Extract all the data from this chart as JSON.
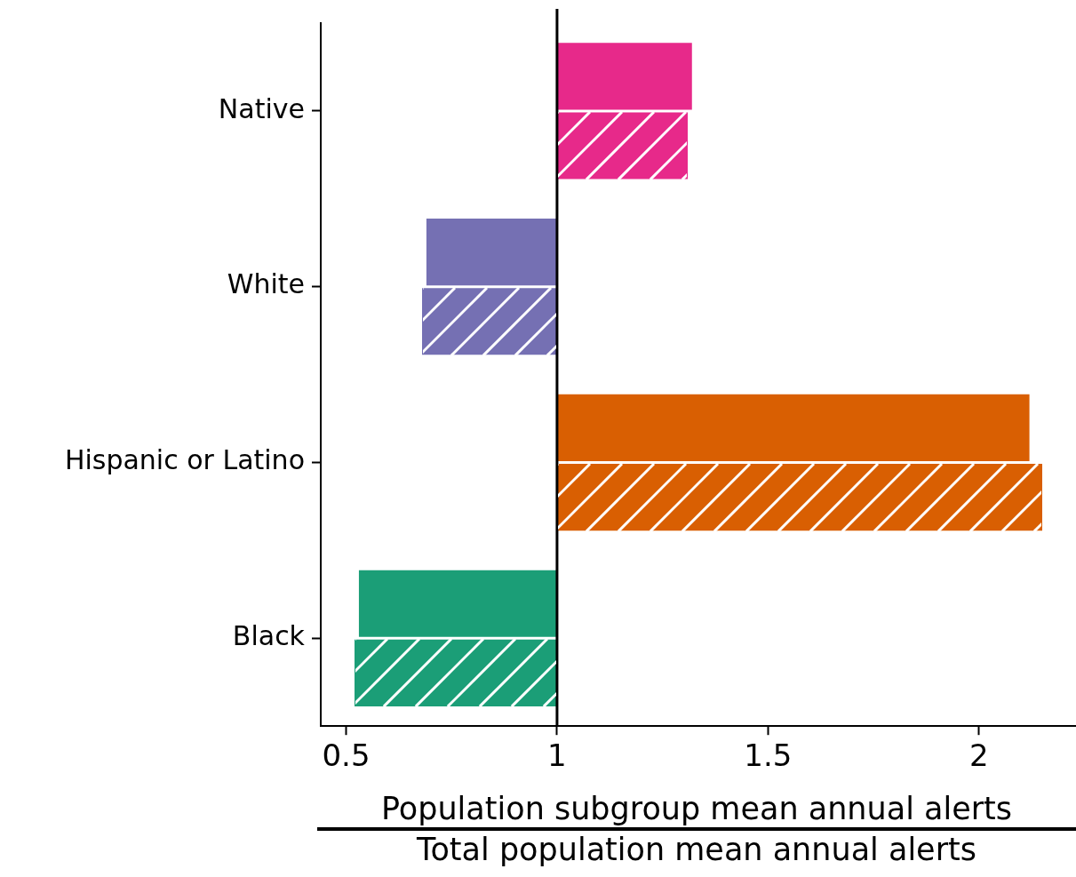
{
  "chart_data": {
    "type": "bar",
    "orientation": "horizontal",
    "xlabel": "Population subgroup mean annual alerts\nTotal population mean annual alerts",
    "categories": [
      "Native",
      "White",
      "Hispanic or Latino",
      "Black"
    ],
    "series": [
      {
        "values": [
          0.32,
          -0.31,
          1.12,
          -0.47
        ],
        "base": [
          1,
          1,
          1,
          1
        ],
        "colors": [
          "#e7298a",
          "#7570b3",
          "#d95f02",
          "#1b9e77"
        ]
      },
      {
        "values": [
          0.31,
          -0.32,
          1.15,
          -0.48
        ],
        "base": [
          1,
          1,
          1,
          1
        ],
        "colors": [
          "#e7298a",
          "#7570b3",
          "#d95f02",
          "#1b9e77"
        ]
      }
    ],
    "xlim": [
      0.44,
      2.23
    ],
    "xticks": [
      {
        "value": 0.5,
        "label": "0.5"
      },
      1,
      {
        "value": 1.5,
        "label": "1.5"
      },
      2
    ],
    "ref_lines": [
      {
        "axis": "x",
        "value": 1,
        "color": "#000000"
      }
    ],
    "grid": false,
    "legend": false
  }
}
